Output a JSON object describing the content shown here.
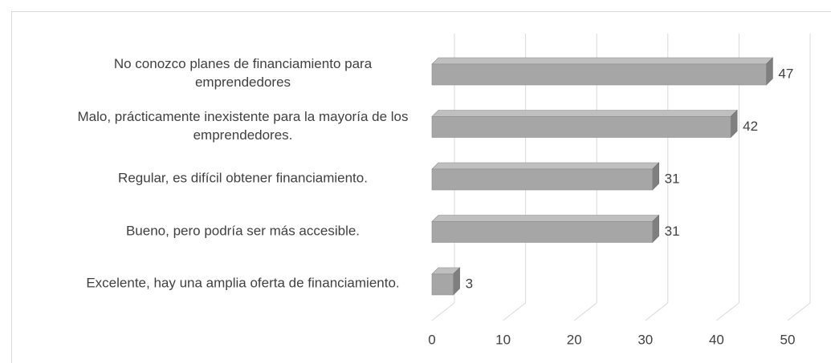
{
  "chart_data": {
    "type": "bar3d_horizontal",
    "categories": [
      "No conozco planes de financiamiento para emprendedores",
      "Malo, prácticamente inexistente para la mayoría de los emprendedores.",
      "Regular, es difícil obtener financiamiento.",
      "Bueno, pero podría ser más accesible.",
      "Excelente, hay una amplia oferta de financiamiento."
    ],
    "values": [
      47,
      42,
      31,
      31,
      3
    ],
    "color": "#a6a6a6",
    "xlim": [
      0,
      50
    ],
    "xticks": [
      0,
      10,
      20,
      30,
      40,
      50
    ],
    "grid": true
  }
}
